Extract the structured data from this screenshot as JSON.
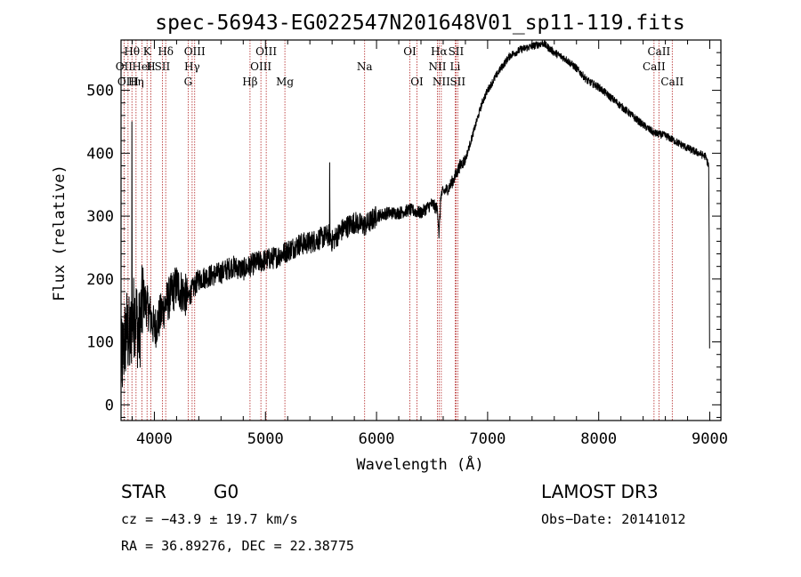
{
  "chart_data": {
    "type": "line",
    "title": "spec-56943-EG022547N201648V01_sp11-119.fits",
    "xlabel": "Wavelength (Å)",
    "ylabel": "Flux (relative)",
    "xlim": [
      3700,
      9100
    ],
    "ylim": [
      -25,
      580
    ],
    "xticks": [
      4000,
      5000,
      6000,
      7000,
      8000,
      9000
    ],
    "yticks": [
      0,
      100,
      200,
      300,
      400,
      500
    ],
    "grid": false,
    "series": [
      {
        "name": "flux",
        "x": [
          3700,
          3750,
          3780,
          3800,
          3830,
          3860,
          3900,
          3950,
          4000,
          4100,
          4200,
          4300,
          4400,
          4500,
          4600,
          4700,
          4800,
          4900,
          5000,
          5100,
          5200,
          5300,
          5400,
          5500,
          5580,
          5600,
          5700,
          5800,
          5900,
          6000,
          6100,
          6200,
          6300,
          6400,
          6500,
          6550,
          6563,
          6580,
          6650,
          6700,
          6750,
          6800,
          6850,
          6900,
          6950,
          7000,
          7100,
          7200,
          7300,
          7400,
          7500,
          7600,
          7700,
          7800,
          7900,
          8000,
          8100,
          8200,
          8300,
          8400,
          8500,
          8600,
          8700,
          8800,
          8900,
          8960,
          8990,
          9000
        ],
        "values": [
          60,
          120,
          100,
          130,
          150,
          110,
          170,
          150,
          120,
          160,
          190,
          170,
          200,
          205,
          210,
          220,
          215,
          225,
          230,
          235,
          245,
          255,
          258,
          265,
          270,
          260,
          280,
          290,
          285,
          300,
          305,
          305,
          310,
          305,
          320,
          310,
          270,
          335,
          345,
          360,
          380,
          390,
          420,
          450,
          480,
          500,
          530,
          555,
          565,
          570,
          575,
          560,
          550,
          535,
          515,
          505,
          490,
          475,
          460,
          445,
          432,
          428,
          418,
          408,
          400,
          395,
          380,
          90
        ]
      }
    ],
    "annotations": [
      {
        "type": "spike",
        "x": 3798,
        "value": 450
      },
      {
        "type": "spike",
        "x": 5577,
        "value": 385
      },
      {
        "type": "absorption",
        "x": 6563,
        "value": 265
      }
    ],
    "spectral_lines": [
      {
        "label": "Hθ",
        "x": 3798
      },
      {
        "label": "OII",
        "x": 3727
      },
      {
        "label": "OIII",
        "x": 3763
      },
      {
        "label": "K",
        "x": 3934
      },
      {
        "label": "HeI",
        "x": 3889
      },
      {
        "label": "Hη",
        "x": 3835
      },
      {
        "label": "H",
        "x": 3968
      },
      {
        "label": "Hδ",
        "x": 4102
      },
      {
        "label": "SII",
        "x": 4072
      },
      {
        "label": "OIII",
        "x": 4363
      },
      {
        "label": "Hγ",
        "x": 4340
      },
      {
        "label": "G",
        "x": 4304
      },
      {
        "label": "OIII",
        "x": 5007
      },
      {
        "label": "OIII",
        "x": 4959
      },
      {
        "label": "Hβ",
        "x": 4861
      },
      {
        "label": "Mg",
        "x": 5175
      },
      {
        "label": "Na",
        "x": 5893
      },
      {
        "label": "OI",
        "x": 6300
      },
      {
        "label": "OI",
        "x": 6364
      },
      {
        "label": "Hα",
        "x": 6563
      },
      {
        "label": "NII",
        "x": 6548
      },
      {
        "label": "NII",
        "x": 6583
      },
      {
        "label": "SII",
        "x": 6716
      },
      {
        "label": "Li",
        "x": 6708
      },
      {
        "label": "SII",
        "x": 6731
      },
      {
        "label": "CaII",
        "x": 8542
      },
      {
        "label": "CaII",
        "x": 8498
      },
      {
        "label": "CaII",
        "x": 8662
      }
    ]
  },
  "info": {
    "object_class": "STAR",
    "subclass": "G0",
    "survey": "LAMOST DR3",
    "cz_line": "cz = −43.9 ± 19.7 km/s",
    "obs_date": "Obs−Date: 20141012",
    "coords": "RA =  36.89276, DEC =  22.38775"
  }
}
